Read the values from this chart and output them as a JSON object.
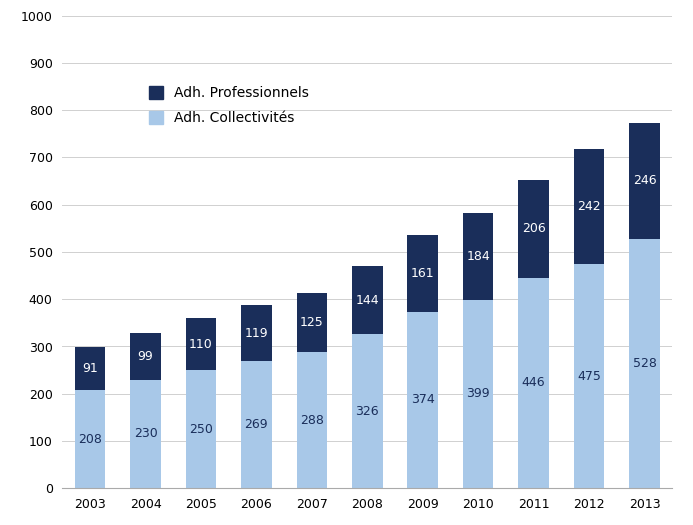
{
  "years": [
    "2003",
    "2004",
    "2005",
    "2006",
    "2007",
    "2008",
    "2009",
    "2010",
    "2011",
    "2012",
    "2013"
  ],
  "collectivites": [
    208,
    230,
    250,
    269,
    288,
    326,
    374,
    399,
    446,
    475,
    528
  ],
  "professionnels": [
    91,
    99,
    110,
    119,
    125,
    144,
    161,
    184,
    206,
    242,
    246
  ],
  "color_collectivites": "#a8c8e8",
  "color_professionnels": "#1a2e5a",
  "ylim": [
    0,
    1000
  ],
  "yticks": [
    0,
    100,
    200,
    300,
    400,
    500,
    600,
    700,
    800,
    900,
    1000
  ],
  "legend_prof": "Adh. Professionnels",
  "legend_coll": "Adh. Collectivités",
  "label_fontsize": 9,
  "tick_fontsize": 9,
  "background_color": "#ffffff",
  "grid_color": "#d0d0d0",
  "bar_width": 0.55
}
